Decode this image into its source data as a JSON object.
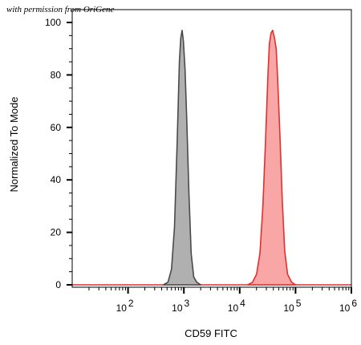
{
  "watermark": "with permission from OriGene",
  "chart_data": {
    "type": "area",
    "xlabel": "CD59 FITC",
    "ylabel": "Normalized To Mode",
    "x_scale": "log",
    "xlim": [
      10,
      1000000
    ],
    "ylim": [
      0,
      100
    ],
    "x_ticks": [
      {
        "base": "10",
        "exp": "2",
        "value": 100
      },
      {
        "base": "10",
        "exp": "3",
        "value": 1000
      },
      {
        "base": "10",
        "exp": "4",
        "value": 10000
      },
      {
        "base": "10",
        "exp": "5",
        "value": 100000
      },
      {
        "base": "10",
        "exp": "6",
        "value": 1000000
      }
    ],
    "y_ticks": [
      "0",
      "20",
      "40",
      "60",
      "80",
      "100"
    ],
    "series": [
      {
        "fill": "#b0b0b0",
        "stroke": "#4a4a4a",
        "points": [
          [
            430,
            0
          ],
          [
            520,
            1
          ],
          [
            600,
            6
          ],
          [
            680,
            22
          ],
          [
            760,
            55
          ],
          [
            830,
            85
          ],
          [
            880,
            94
          ],
          [
            930,
            97
          ],
          [
            980,
            93
          ],
          [
            1050,
            82
          ],
          [
            1130,
            62
          ],
          [
            1230,
            35
          ],
          [
            1350,
            12
          ],
          [
            1500,
            3
          ],
          [
            1700,
            1
          ],
          [
            2000,
            0
          ]
        ]
      },
      {
        "fill": "#f9a6a6",
        "stroke": "#e03030",
        "points": [
          [
            14000,
            0
          ],
          [
            17000,
            1
          ],
          [
            20000,
            4
          ],
          [
            23000,
            12
          ],
          [
            26000,
            30
          ],
          [
            29000,
            55
          ],
          [
            32000,
            80
          ],
          [
            34000,
            92
          ],
          [
            36500,
            96
          ],
          [
            39000,
            97
          ],
          [
            42000,
            94
          ],
          [
            45000,
            90
          ],
          [
            48000,
            78
          ],
          [
            53000,
            55
          ],
          [
            58000,
            32
          ],
          [
            64000,
            13
          ],
          [
            72000,
            4
          ],
          [
            85000,
            1
          ],
          [
            100000,
            0
          ]
        ]
      }
    ]
  }
}
